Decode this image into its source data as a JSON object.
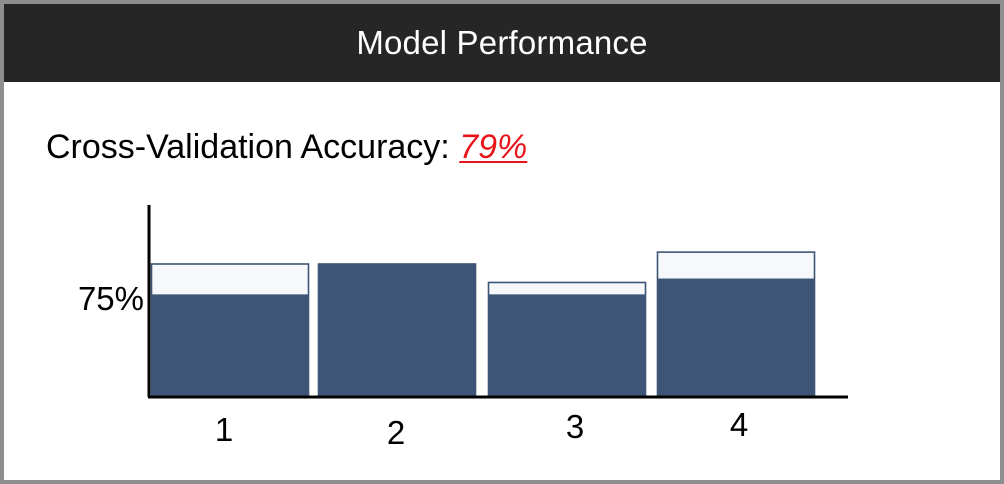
{
  "header": {
    "title": "Model Performance"
  },
  "metric": {
    "label": "Cross-Validation Accuracy:",
    "value": "79%"
  },
  "chart_data": {
    "type": "bar",
    "categories": [
      "1",
      "2",
      "3",
      "4"
    ],
    "y_tick_label": "75%",
    "bars": [
      {
        "outer": 1.0,
        "inner": 0.77
      },
      {
        "outer": 1.0,
        "inner": 1.0
      },
      {
        "outer": 0.86,
        "inner": 0.77
      },
      {
        "outer": 1.09,
        "inner": 0.89
      }
    ],
    "colors": {
      "fill": "#3d5576",
      "outline": "#3d5576",
      "empty": "#f6f8fb",
      "axis": "#000000"
    }
  }
}
